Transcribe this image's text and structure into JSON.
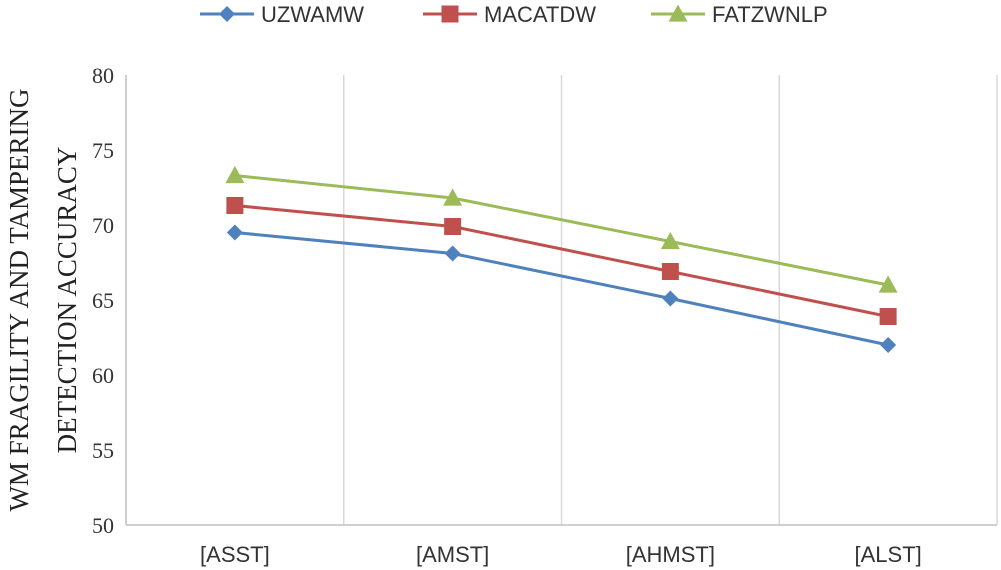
{
  "chart_data": {
    "type": "line",
    "title": "",
    "categories": [
      "[ASST]",
      "[AMST]",
      "[AHMST]",
      "[ALST]"
    ],
    "series": [
      {
        "name": "UZWAMW",
        "values": [
          69.5,
          68.1,
          65.1,
          62.0
        ],
        "color": "#4F81BD",
        "marker": "diamond"
      },
      {
        "name": "MACATDW",
        "values": [
          71.3,
          69.9,
          66.9,
          63.9
        ],
        "color": "#C0504D",
        "marker": "square"
      },
      {
        "name": "FATZWNLP",
        "values": [
          73.3,
          71.8,
          68.9,
          66.0
        ],
        "color": "#9BBB59",
        "marker": "triangle"
      }
    ],
    "xlabel": "",
    "ylabel_lines": [
      "WM FRAGILITY AND TAMPERING",
      "DETECTION ACCURACY"
    ],
    "ylim": [
      50,
      80
    ],
    "yticks": [
      "50",
      "55",
      "60",
      "65",
      "70",
      "75",
      "80"
    ],
    "grid": "vertical",
    "legend_position": "top"
  }
}
